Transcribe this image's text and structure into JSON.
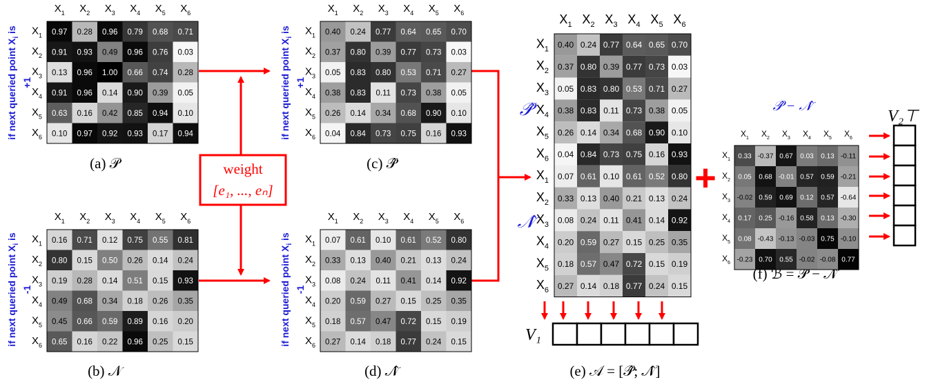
{
  "labels": [
    "X",
    "X",
    "X",
    "X",
    "X",
    "X"
  ],
  "subs": [
    "1",
    "2",
    "3",
    "4",
    "5",
    "6"
  ],
  "side_if": "if next queried point X",
  "side_i": "i",
  "side_is": " is",
  "plus_one": "+1",
  "minus_one": "-1",
  "weight_label": "weight",
  "weight_vector": "[e₁, ..., eₙ]",
  "captions": {
    "a": "(a) 𝒫",
    "b": "(b) 𝒩",
    "c": "(c) 𝒫̂",
    "d": "(d) 𝒩̂",
    "e": "(e) 𝒜 = [𝒫̂; 𝒩̂]",
    "f": "(f) ℬ = 𝒫̂ − 𝒩̂"
  },
  "p_hat_label": "𝒫̂",
  "n_hat_label": "𝒩̂",
  "diff_label": "𝒫̂ − 𝒩̂",
  "v1_label": "V₁",
  "v2_label": "V₂⊤",
  "plus_sign": "+",
  "colors": {
    "arrow": "#ff0000",
    "weight_box": "#ff0000",
    "blue": "#1a1ad4"
  },
  "matrices": {
    "P": [
      [
        "0.97",
        "0.28",
        "0.96",
        "0.79",
        "0.68",
        "0.71"
      ],
      [
        "0.91",
        "0.93",
        "0.49",
        "0.96",
        "0.76",
        "0.03"
      ],
      [
        "0.13",
        "0.96",
        "1.00",
        "0.66",
        "0.74",
        "0.28"
      ],
      [
        "0.91",
        "0.96",
        "0.14",
        "0.90",
        "0.39",
        "0.05"
      ],
      [
        "0.63",
        "0.16",
        "0.42",
        "0.85",
        "0.94",
        "0.10"
      ],
      [
        "0.10",
        "0.97",
        "0.92",
        "0.93",
        "0.17",
        "0.94"
      ]
    ],
    "N": [
      [
        "0.16",
        "0.71",
        "0.12",
        "0.75",
        "0.55",
        "0.81"
      ],
      [
        "0.80",
        "0.15",
        "0.50",
        "0.26",
        "0.14",
        "0.24"
      ],
      [
        "0.19",
        "0.28",
        "0.14",
        "0.51",
        "0.15",
        "0.93"
      ],
      [
        "0.49",
        "0.68",
        "0.34",
        "0.18",
        "0.26",
        "0.35"
      ],
      [
        "0.45",
        "0.66",
        "0.59",
        "0.89",
        "0.16",
        "0.20"
      ],
      [
        "0.65",
        "0.16",
        "0.22",
        "0.96",
        "0.25",
        "0.15"
      ]
    ],
    "P_hat": [
      [
        "0.40",
        "0.24",
        "0.77",
        "0.64",
        "0.65",
        "0.70"
      ],
      [
        "0.37",
        "0.80",
        "0.39",
        "0.77",
        "0.73",
        "0.03"
      ],
      [
        "0.05",
        "0.83",
        "0.80",
        "0.53",
        "0.71",
        "0.27"
      ],
      [
        "0.38",
        "0.83",
        "0.11",
        "0.73",
        "0.38",
        "0.05"
      ],
      [
        "0.26",
        "0.14",
        "0.34",
        "0.68",
        "0.90",
        "0.10"
      ],
      [
        "0.04",
        "0.84",
        "0.73",
        "0.75",
        "0.16",
        "0.93"
      ]
    ],
    "N_hat": [
      [
        "0.07",
        "0.61",
        "0.10",
        "0.61",
        "0.52",
        "0.80"
      ],
      [
        "0.33",
        "0.13",
        "0.40",
        "0.21",
        "0.13",
        "0.24"
      ],
      [
        "0.08",
        "0.24",
        "0.11",
        "0.41",
        "0.14",
        "0.92"
      ],
      [
        "0.20",
        "0.59",
        "0.27",
        "0.15",
        "0.25",
        "0.35"
      ],
      [
        "0.18",
        "0.57",
        "0.47",
        "0.72",
        "0.15",
        "0.19"
      ],
      [
        "0.27",
        "0.14",
        "0.18",
        "0.77",
        "0.24",
        "0.15"
      ]
    ],
    "A": [
      [
        "0.40",
        "0.24",
        "0.77",
        "0.64",
        "0.65",
        "0.70"
      ],
      [
        "0.37",
        "0.80",
        "0.39",
        "0.77",
        "0.73",
        "0.03"
      ],
      [
        "0.05",
        "0.83",
        "0.80",
        "0.53",
        "0.71",
        "0.27"
      ],
      [
        "0.38",
        "0.83",
        "0.11",
        "0.73",
        "0.38",
        "0.05"
      ],
      [
        "0.26",
        "0.14",
        "0.34",
        "0.68",
        "0.90",
        "0.10"
      ],
      [
        "0.04",
        "0.84",
        "0.73",
        "0.75",
        "0.16",
        "0.93"
      ],
      [
        "0.07",
        "0.61",
        "0.10",
        "0.61",
        "0.52",
        "0.80"
      ],
      [
        "0.33",
        "0.13",
        "0.40",
        "0.21",
        "0.13",
        "0.24"
      ],
      [
        "0.08",
        "0.24",
        "0.11",
        "0.41",
        "0.14",
        "0.92"
      ],
      [
        "0.20",
        "0.59",
        "0.27",
        "0.15",
        "0.25",
        "0.35"
      ],
      [
        "0.18",
        "0.57",
        "0.47",
        "0.72",
        "0.15",
        "0.19"
      ],
      [
        "0.27",
        "0.14",
        "0.18",
        "0.77",
        "0.24",
        "0.15"
      ]
    ],
    "B": [
      [
        "0.33",
        "-0.37",
        "0.67",
        "0.03",
        "0.13",
        "-0.11"
      ],
      [
        "0.05",
        "0.68",
        "-0.01",
        "0.57",
        "0.59",
        "-0.21"
      ],
      [
        "-0.02",
        "0.59",
        "0.69",
        "0.12",
        "0.57",
        "-0.64"
      ],
      [
        "0.17",
        "0.25",
        "-0.16",
        "0.58",
        "0.13",
        "-0.30"
      ],
      [
        "0.08",
        "-0.43",
        "-0.13",
        "-0.03",
        "0.75",
        "-0.10"
      ],
      [
        "-0.23",
        "0.70",
        "0.55",
        "-0.02",
        "-0.08",
        "0.77"
      ]
    ]
  }
}
